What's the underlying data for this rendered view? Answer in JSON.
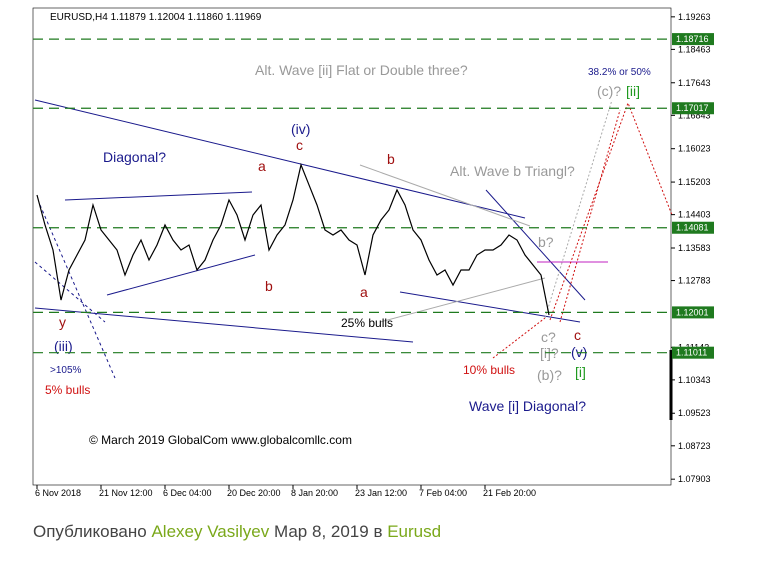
{
  "chart_data": {
    "type": "line",
    "title": "EURUSD,H4  1.11879 1.12004 1.11860 1.11969",
    "categories": [
      "6 Nov 2018",
      null,
      null,
      null,
      null,
      null,
      null,
      null,
      "21 Nov 12:00",
      null,
      null,
      null,
      null,
      null,
      null,
      null,
      "6 Dec 04:00",
      null,
      null,
      null,
      null,
      null,
      null,
      null,
      "20 Dec 20:00",
      null,
      null,
      null,
      null,
      null,
      null,
      null,
      "8 Jan 20:00",
      null,
      null,
      null,
      null,
      null,
      null,
      null,
      "23 Jan 12:00",
      null,
      null,
      null,
      null,
      null,
      null,
      null,
      "7 Feb 04:00",
      null,
      null,
      null,
      null,
      null,
      null,
      null,
      "21 Feb 20:00",
      null,
      null,
      null,
      null,
      null,
      null,
      null,
      null
    ],
    "series": [
      {
        "color": "#000000",
        "values": [
          1.14886,
          1.14149,
          1.13534,
          1.12304,
          1.13042,
          1.13411,
          1.1378,
          1.1464,
          1.14026,
          1.1378,
          1.13534,
          1.12919,
          1.13411,
          1.1378,
          1.13288,
          1.13657,
          1.14149,
          1.1378,
          1.13534,
          1.13657,
          1.13042,
          1.13288,
          1.1378,
          1.14149,
          1.14763,
          1.14394,
          1.1378,
          1.14394,
          1.1464,
          1.13534,
          1.13903,
          1.14149,
          1.14763,
          1.15624,
          1.15132,
          1.1464,
          1.14026,
          1.13903,
          1.14026,
          1.1378,
          1.13657,
          1.12919,
          1.13903,
          1.14272,
          1.14517,
          1.15009,
          1.1464,
          1.14026,
          1.1378,
          1.13288,
          1.12919,
          1.13042,
          1.12673,
          1.13042,
          1.13042,
          1.13411,
          1.13534,
          1.13534,
          1.13657,
          1.13903,
          1.1378,
          1.13411,
          1.13165,
          1.12919,
          1.11936
        ]
      }
    ],
    "ylim": [
      1.0776,
      1.1948
    ],
    "yticks": [
      1.19263,
      1.18463,
      1.17643,
      1.16843,
      1.16023,
      1.15203,
      1.14403,
      1.13583,
      1.12783,
      1.11143,
      1.10343,
      1.09523,
      1.08723,
      1.07903
    ],
    "levels": [
      1.18716,
      1.17017,
      1.14081,
      1.12001,
      1.11011
    ],
    "level_color": "#1f7a1f",
    "annotations": [
      "Alt. Wave [ii] Flat or Double three?",
      "38.2% or 50%",
      "(c)?",
      "[ii]",
      "(iv)",
      "c",
      "Diagonal?",
      "a",
      "b",
      "Alt. Wave b Triangl?",
      "b",
      "a",
      "b?",
      "y",
      "25% bulls",
      "c?",
      "c",
      "[i]?",
      "(v)",
      "(iii)",
      ">105%",
      "10% bulls",
      "(b)?",
      "[i]",
      "5% bulls",
      "Wave [i] Diagonal?",
      "© March 2019 GlobalCom www.globalcomllc.com"
    ]
  },
  "footer": {
    "published": "Опубликовано",
    "author": "Alexey Vasilyev",
    "date": "Мар 8, 2019",
    "in": "в",
    "symbol": "Eurusd"
  }
}
